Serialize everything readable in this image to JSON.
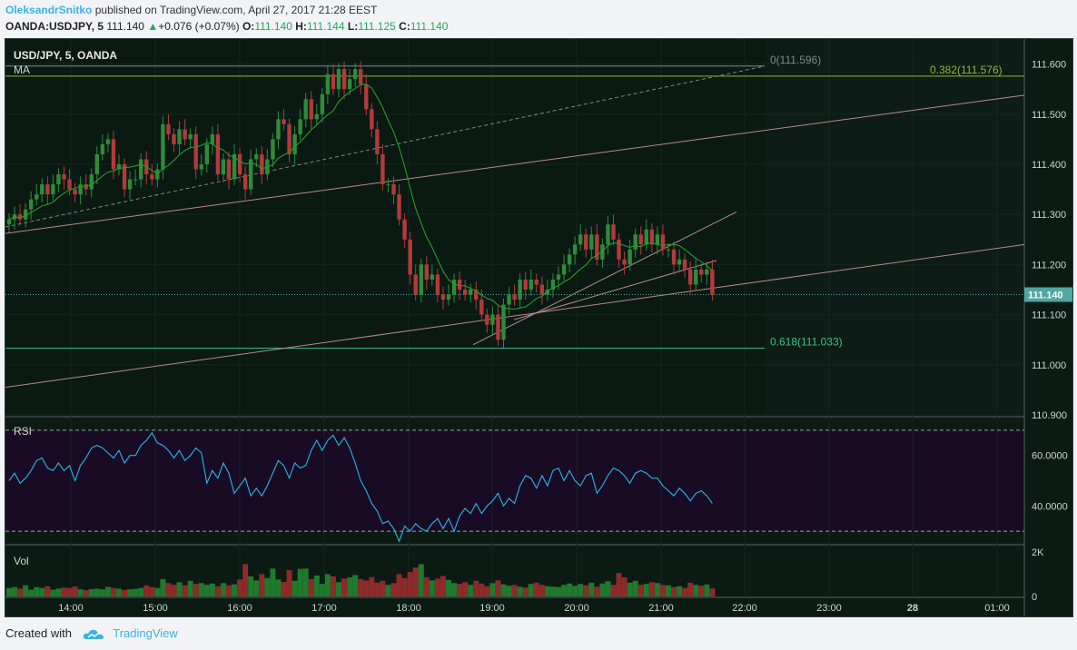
{
  "header": {
    "author": "OleksandrSnitko",
    "published_text": "published on TradingView.com, April 27, 2017 21:28 EEST",
    "symbol_line": "OANDA:USDJPY, 5",
    "last": "111.140",
    "change": "+0.076 (+0.07%)",
    "o_label": "O:",
    "o_value": "111.140",
    "h_label": "H:",
    "h_value": "111.144",
    "l_label": "L:",
    "l_value": "111.125",
    "c_label": "C:",
    "c_value": "111.140"
  },
  "footer": {
    "created_with": "Created with",
    "brand": "TradingView"
  },
  "colors": {
    "bull": "#2e8b3a",
    "bear": "#b23a3a",
    "ma": "#2a9b2a",
    "rsi": "#29b6e6",
    "fib0": "#7f8a85",
    "fib382": "#8fb83a",
    "fib618": "#3fbf8f",
    "channel": "#b88a8a",
    "rsi_bg": "#1a0b24",
    "price_tag": "#4fa7a0"
  },
  "chart_data": [
    {
      "type": "candlestick",
      "title": "USD/JPY, 5, OANDA",
      "indicator_label": "MA",
      "ylim": [
        110.9,
        111.65
      ],
      "y_ticks": [
        "111.600",
        "111.500",
        "111.400",
        "111.300",
        "111.200",
        "111.100",
        "111.000",
        "110.900"
      ],
      "x_ticks": [
        "14:00",
        "15:00",
        "16:00",
        "17:00",
        "18:00",
        "19:00",
        "20:00",
        "21:00",
        "22:00",
        "23:00",
        "28",
        "01:00"
      ],
      "last_price_label": "111.140",
      "fib_levels": [
        {
          "label": "0(111.596)",
          "value": 111.596
        },
        {
          "label": "0.382(111.576)",
          "value": 111.576
        },
        {
          "label": "0.618(111.033)",
          "value": 111.033
        }
      ],
      "close": [
        111.29,
        111.3,
        111.29,
        111.31,
        111.33,
        111.34,
        111.36,
        111.34,
        111.36,
        111.38,
        111.37,
        111.35,
        111.34,
        111.36,
        111.35,
        111.38,
        111.42,
        111.44,
        111.45,
        111.39,
        111.4,
        111.35,
        111.37,
        111.37,
        111.41,
        111.38,
        111.37,
        111.39,
        111.48,
        111.46,
        111.44,
        111.47,
        111.45,
        111.46,
        111.39,
        111.4,
        111.44,
        111.46,
        111.38,
        111.41,
        111.37,
        111.42,
        111.38,
        111.35,
        111.41,
        111.42,
        111.38,
        111.41,
        111.45,
        111.49,
        111.48,
        111.42,
        111.46,
        111.49,
        111.53,
        111.49,
        111.5,
        111.54,
        111.58,
        111.55,
        111.59,
        111.55,
        111.57,
        111.59,
        111.56,
        111.51,
        111.47,
        111.42,
        111.36,
        111.36,
        111.34,
        111.29,
        111.25,
        111.18,
        111.14,
        111.2,
        111.17,
        111.18,
        111.14,
        111.13,
        111.14,
        111.17,
        111.15,
        111.14,
        111.15,
        111.13,
        111.1,
        111.08,
        111.1,
        111.05,
        111.12,
        111.14,
        111.13,
        111.17,
        111.15,
        111.17,
        111.16,
        111.14,
        111.15,
        111.17,
        111.18,
        111.2,
        111.22,
        111.24,
        111.26,
        111.23,
        111.26,
        111.21,
        111.24,
        111.28,
        111.25,
        111.21,
        111.2,
        111.23,
        111.26,
        111.24,
        111.27,
        111.24,
        111.26,
        111.23,
        111.23,
        111.2,
        111.21,
        111.19,
        111.16,
        111.19,
        111.18,
        111.19,
        111.14
      ]
    },
    {
      "type": "line",
      "title": "RSI",
      "ylim": [
        25,
        75
      ],
      "y_ticks": [
        "60.0000",
        "40.0000"
      ],
      "bands": [
        70,
        30
      ],
      "values": [
        50,
        53,
        49,
        51,
        54,
        58,
        59,
        55,
        54,
        57,
        54,
        56,
        50,
        56,
        59,
        63,
        64,
        63,
        61,
        59,
        62,
        57,
        60,
        60,
        64,
        66,
        69,
        65,
        64,
        62,
        59,
        62,
        58,
        60,
        63,
        61,
        49,
        54,
        51,
        57,
        53,
        45,
        48,
        51,
        44,
        47,
        44,
        48,
        53,
        58,
        56,
        51,
        57,
        55,
        56,
        62,
        66,
        62,
        66,
        68,
        64,
        67,
        63,
        57,
        50,
        46,
        41,
        38,
        33,
        34,
        31,
        26,
        32,
        30,
        33,
        31,
        30,
        33,
        35,
        31,
        35,
        30,
        36,
        39,
        37,
        41,
        37,
        40,
        42,
        45,
        40,
        43,
        41,
        48,
        52,
        51,
        47,
        52,
        48,
        54,
        55,
        50,
        54,
        50,
        48,
        52,
        53,
        45,
        48,
        52,
        55,
        54,
        52,
        49,
        53,
        54,
        53,
        51,
        51,
        48,
        46,
        44,
        47,
        45,
        42,
        45,
        46,
        44,
        41
      ]
    },
    {
      "type": "bar",
      "title": "Vol",
      "ylim": [
        0,
        2200
      ],
      "y_ticks": [
        "2K",
        "0"
      ],
      "values": [
        380,
        420,
        350,
        500,
        300,
        420,
        380,
        460,
        300,
        350,
        400,
        380,
        450,
        320,
        280,
        330,
        350,
        320,
        430,
        380,
        350,
        290,
        320,
        340,
        380,
        500,
        420,
        380,
        780,
        600,
        520,
        640,
        500,
        700,
        560,
        600,
        520,
        580,
        460,
        600,
        500,
        540,
        760,
        1450,
        900,
        720,
        1000,
        820,
        1250,
        760,
        650,
        1180,
        700,
        1240,
        1250,
        780,
        940,
        560,
        1000,
        900,
        640,
        800,
        860,
        960,
        780,
        720,
        870,
        620,
        700,
        520,
        600,
        1000,
        820,
        1100,
        1300,
        1450,
        860,
        720,
        800,
        920,
        740,
        600,
        560,
        640,
        520,
        700,
        580,
        460,
        600,
        720,
        540,
        480,
        520,
        430,
        400,
        560,
        620,
        520,
        460,
        440,
        420,
        520,
        580,
        480,
        560,
        500,
        620,
        440,
        580,
        680,
        520,
        1050,
        860,
        620,
        700,
        520,
        560,
        640,
        600,
        520,
        500,
        420,
        460,
        380,
        620,
        520,
        480,
        540,
        360
      ]
    }
  ]
}
